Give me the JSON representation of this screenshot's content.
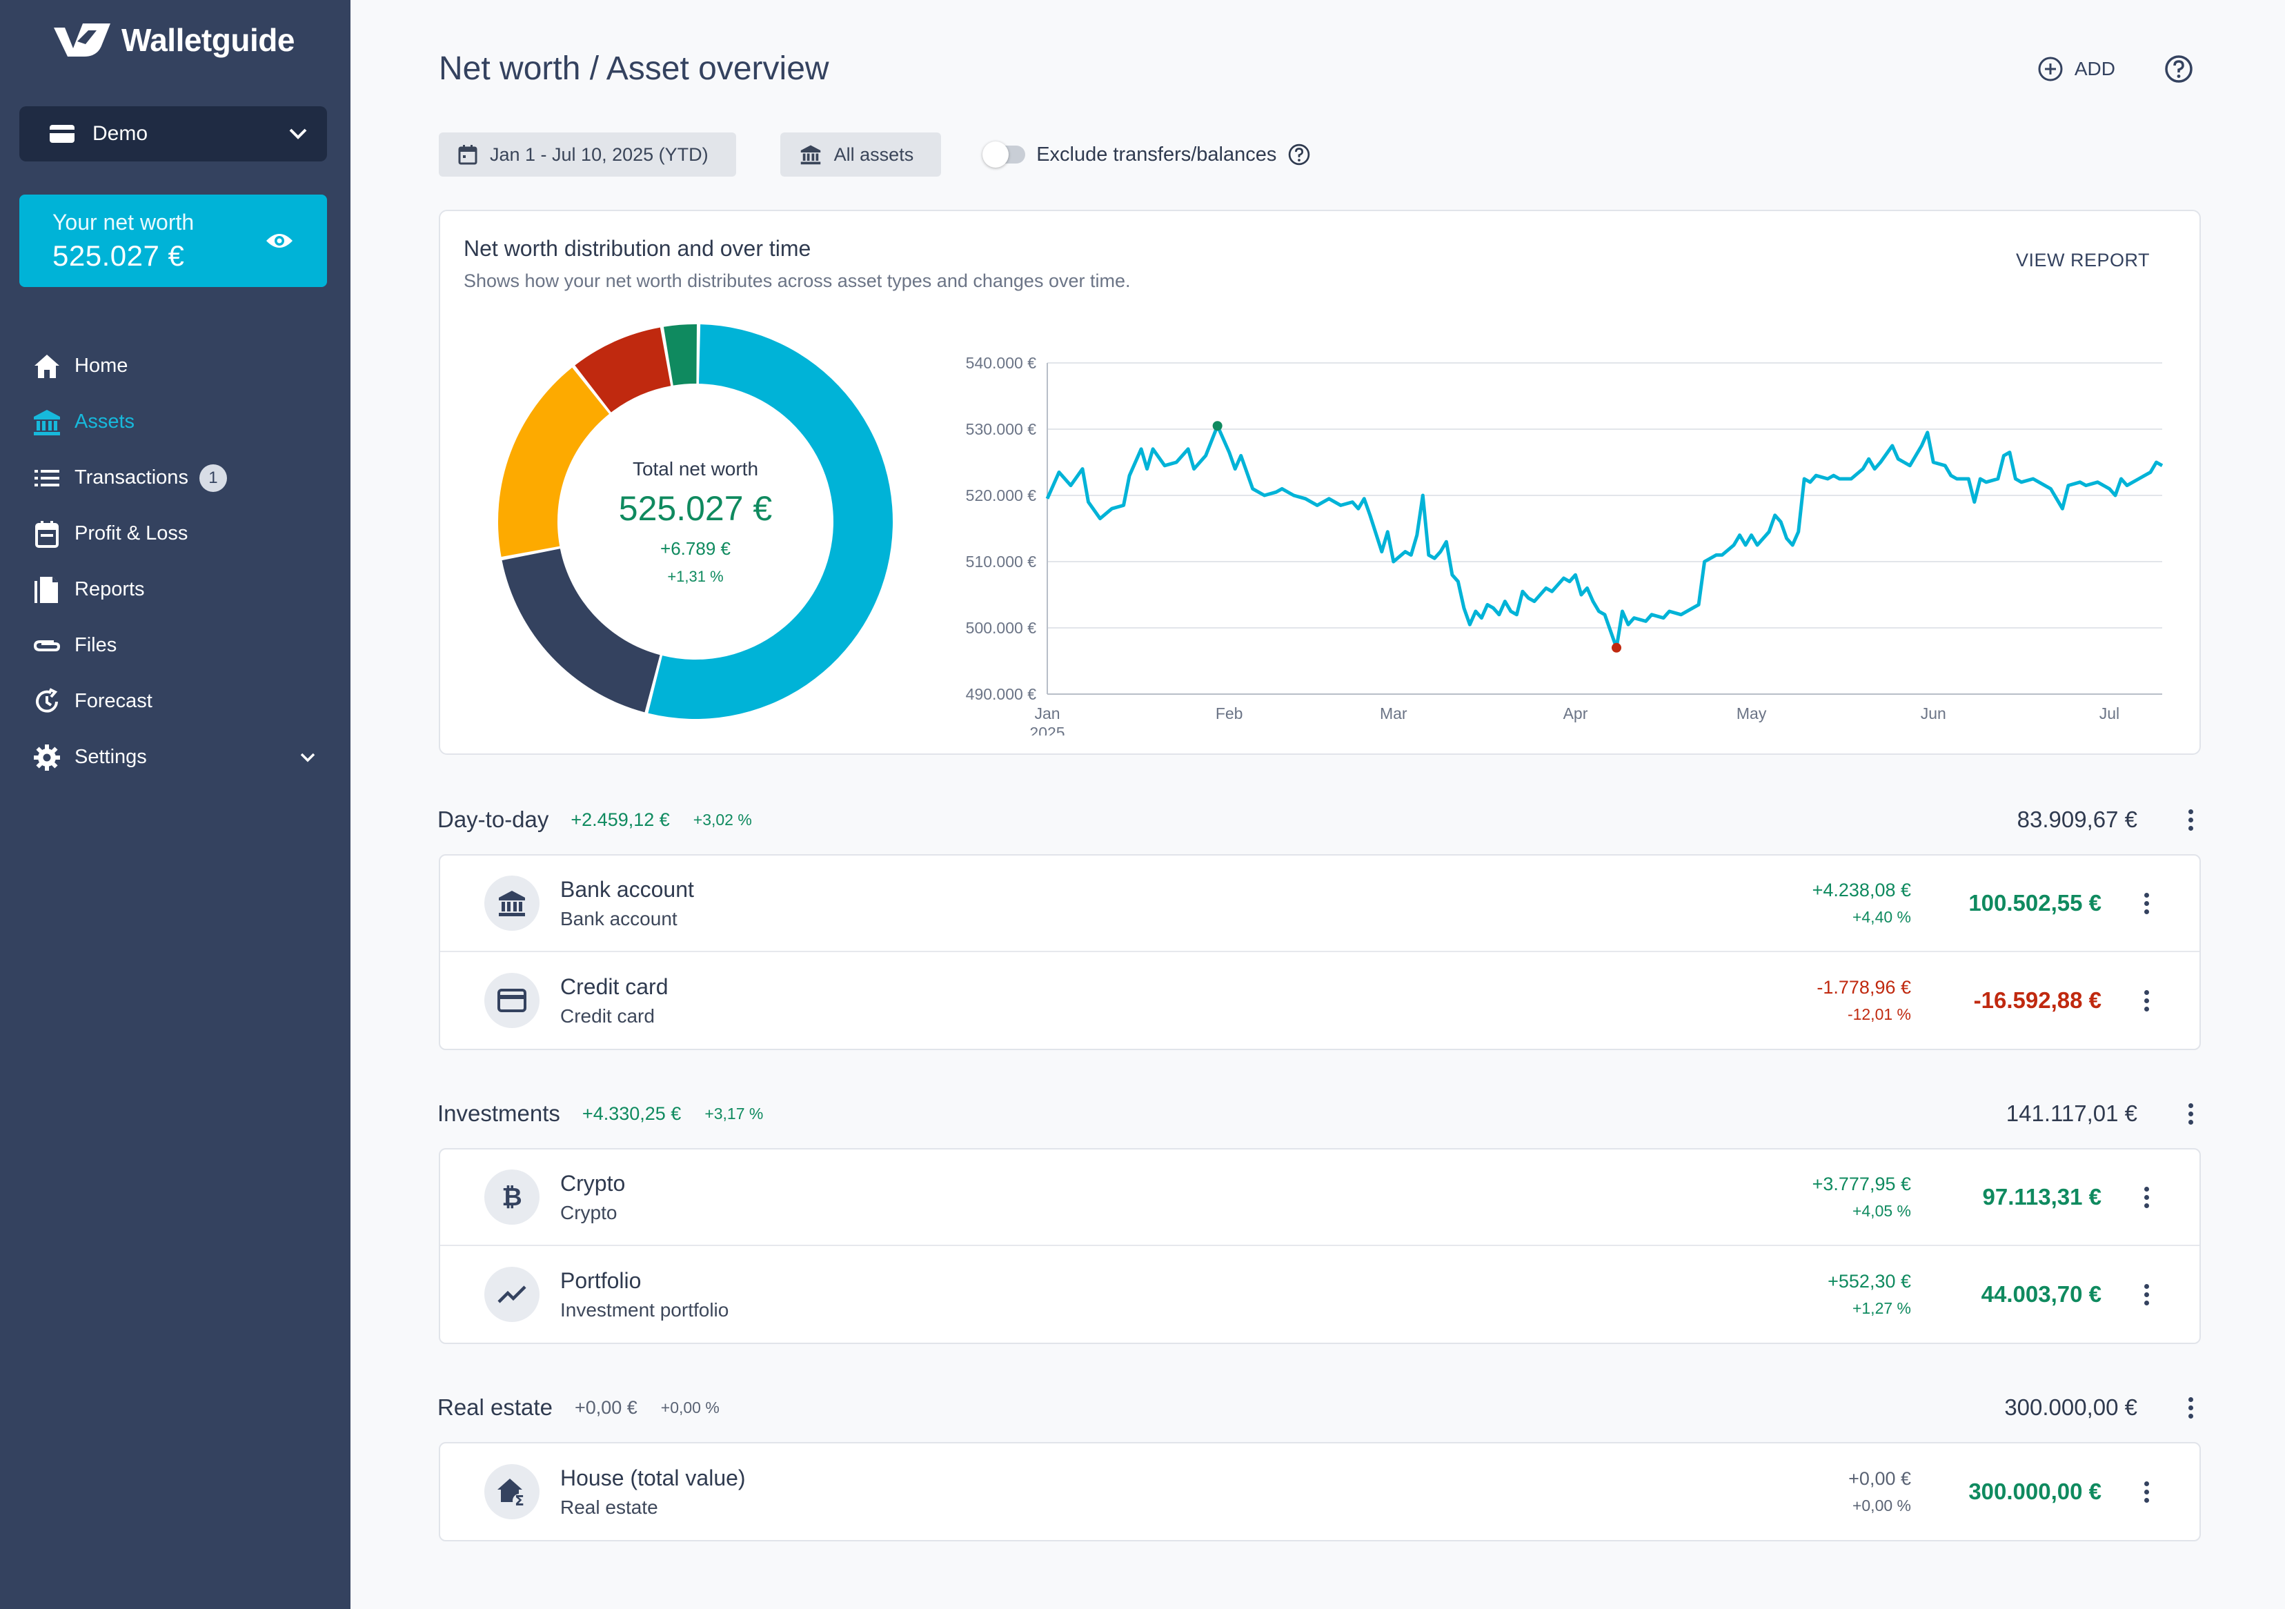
{
  "app": {
    "name": "Walletguide"
  },
  "sidebar": {
    "account": "Demo",
    "networth": {
      "label": "Your net worth",
      "value": "525.027 €"
    },
    "items": [
      {
        "label": "Home",
        "icon": "home-icon",
        "active": false
      },
      {
        "label": "Assets",
        "icon": "bank-icon",
        "active": true
      },
      {
        "label": "Transactions",
        "icon": "list-icon",
        "active": false,
        "badge": "1"
      },
      {
        "label": "Profit & Loss",
        "icon": "calendar-icon",
        "active": false
      },
      {
        "label": "Reports",
        "icon": "document-icon",
        "active": false
      },
      {
        "label": "Files",
        "icon": "paperclip-icon",
        "active": false
      },
      {
        "label": "Forecast",
        "icon": "forecast-icon",
        "active": false
      },
      {
        "label": "Settings",
        "icon": "gear-icon",
        "active": false
      }
    ]
  },
  "header": {
    "title": "Net worth / Asset overview",
    "add_label": "ADD"
  },
  "filters": {
    "date_range": "Jan 1 - Jul 10, 2025 (YTD)",
    "assets": "All assets",
    "exclude_label": "Exclude transfers/balances",
    "exclude_on": false
  },
  "chart_card": {
    "title": "Net worth distribution and over time",
    "subtitle": "Shows how your net worth distributes across asset types and changes over time.",
    "view_report": "VIEW REPORT",
    "center": {
      "label": "Total net worth",
      "value": "525.027 €",
      "change": "+6.789 €",
      "pct": "+1,31 %"
    }
  },
  "chart_data": [
    {
      "type": "pie",
      "variant": "donut",
      "slices": [
        {
          "value": 300000.0,
          "color": "#00b3d7"
        },
        {
          "value": 100502.55,
          "color": "#34425f"
        },
        {
          "value": 97113.31,
          "color": "#fdaa00"
        },
        {
          "value": 44003.7,
          "color": "#c0290f"
        },
        {
          "value": 16592.88,
          "color": "#0f8a5f"
        }
      ]
    },
    {
      "type": "line",
      "ylim": [
        490000,
        540000
      ],
      "yticks": [
        "490.000 €",
        "500.000 €",
        "510.000 €",
        "520.000 €",
        "530.000 €",
        "540.000 €"
      ],
      "ytick_values": [
        490000,
        500000,
        510000,
        520000,
        530000,
        540000
      ],
      "xticks": [
        "Jan",
        "Feb",
        "Mar",
        "Apr",
        "May",
        "Jun",
        "Jul"
      ],
      "xtick_days": [
        0,
        31,
        59,
        90,
        120,
        151,
        181
      ],
      "x_year_label": "2025",
      "x_max_day": 190,
      "color": "#00b3d7",
      "max_point": {
        "day": 29,
        "value": 530500,
        "color": "#0f8a5f"
      },
      "min_point": {
        "day": 97,
        "value": 497000,
        "color": "#c0290f"
      },
      "series": [
        {
          "day": 0,
          "value": 519500
        },
        {
          "day": 2,
          "value": 523500
        },
        {
          "day": 4,
          "value": 521500
        },
        {
          "day": 6,
          "value": 524000
        },
        {
          "day": 7,
          "value": 519000
        },
        {
          "day": 9,
          "value": 516500
        },
        {
          "day": 11,
          "value": 518000
        },
        {
          "day": 13,
          "value": 518500
        },
        {
          "day": 14,
          "value": 523000
        },
        {
          "day": 16,
          "value": 527000
        },
        {
          "day": 17,
          "value": 524000
        },
        {
          "day": 18,
          "value": 527000
        },
        {
          "day": 20,
          "value": 524500
        },
        {
          "day": 22,
          "value": 525000
        },
        {
          "day": 24,
          "value": 527000
        },
        {
          "day": 25,
          "value": 524000
        },
        {
          "day": 27,
          "value": 526000
        },
        {
          "day": 29,
          "value": 530500
        },
        {
          "day": 31,
          "value": 526500
        },
        {
          "day": 32,
          "value": 524000
        },
        {
          "day": 33,
          "value": 526000
        },
        {
          "day": 35,
          "value": 521000
        },
        {
          "day": 37,
          "value": 520000
        },
        {
          "day": 39,
          "value": 520500
        },
        {
          "day": 40,
          "value": 521000
        },
        {
          "day": 42,
          "value": 520000
        },
        {
          "day": 44,
          "value": 519500
        },
        {
          "day": 46,
          "value": 518500
        },
        {
          "day": 48,
          "value": 519500
        },
        {
          "day": 50,
          "value": 518500
        },
        {
          "day": 52,
          "value": 519000
        },
        {
          "day": 53,
          "value": 518000
        },
        {
          "day": 54,
          "value": 519500
        },
        {
          "day": 55,
          "value": 517000
        },
        {
          "day": 57,
          "value": 511500
        },
        {
          "day": 58,
          "value": 514500
        },
        {
          "day": 59,
          "value": 510000
        },
        {
          "day": 61,
          "value": 511500
        },
        {
          "day": 62,
          "value": 511000
        },
        {
          "day": 63,
          "value": 514000
        },
        {
          "day": 64,
          "value": 520000
        },
        {
          "day": 65,
          "value": 511000
        },
        {
          "day": 66,
          "value": 510500
        },
        {
          "day": 67,
          "value": 511500
        },
        {
          "day": 68,
          "value": 513000
        },
        {
          "day": 69,
          "value": 508000
        },
        {
          "day": 70,
          "value": 507000
        },
        {
          "day": 71,
          "value": 503000
        },
        {
          "day": 72,
          "value": 500500
        },
        {
          "day": 73,
          "value": 502500
        },
        {
          "day": 74,
          "value": 501500
        },
        {
          "day": 75,
          "value": 503500
        },
        {
          "day": 76,
          "value": 503000
        },
        {
          "day": 77,
          "value": 502000
        },
        {
          "day": 78,
          "value": 504000
        },
        {
          "day": 79,
          "value": 502500
        },
        {
          "day": 80,
          "value": 502000
        },
        {
          "day": 81,
          "value": 505500
        },
        {
          "day": 82,
          "value": 504500
        },
        {
          "day": 83,
          "value": 504000
        },
        {
          "day": 85,
          "value": 506000
        },
        {
          "day": 86,
          "value": 505500
        },
        {
          "day": 88,
          "value": 507500
        },
        {
          "day": 89,
          "value": 507000
        },
        {
          "day": 90,
          "value": 508000
        },
        {
          "day": 91,
          "value": 505000
        },
        {
          "day": 92,
          "value": 506000
        },
        {
          "day": 93,
          "value": 504000
        },
        {
          "day": 94,
          "value": 502500
        },
        {
          "day": 95,
          "value": 502000
        },
        {
          "day": 96,
          "value": 499500
        },
        {
          "day": 97,
          "value": 497000
        },
        {
          "day": 98,
          "value": 502500
        },
        {
          "day": 99,
          "value": 500500
        },
        {
          "day": 100,
          "value": 501500
        },
        {
          "day": 102,
          "value": 501000
        },
        {
          "day": 103,
          "value": 502000
        },
        {
          "day": 105,
          "value": 501500
        },
        {
          "day": 106,
          "value": 502500
        },
        {
          "day": 108,
          "value": 502000
        },
        {
          "day": 110,
          "value": 503000
        },
        {
          "day": 111,
          "value": 503500
        },
        {
          "day": 112,
          "value": 510000
        },
        {
          "day": 114,
          "value": 511000
        },
        {
          "day": 115,
          "value": 511000
        },
        {
          "day": 117,
          "value": 512500
        },
        {
          "day": 118,
          "value": 514000
        },
        {
          "day": 119,
          "value": 512500
        },
        {
          "day": 120,
          "value": 514000
        },
        {
          "day": 121,
          "value": 512500
        },
        {
          "day": 123,
          "value": 514500
        },
        {
          "day": 124,
          "value": 517000
        },
        {
          "day": 125,
          "value": 516000
        },
        {
          "day": 126,
          "value": 513500
        },
        {
          "day": 127,
          "value": 512500
        },
        {
          "day": 128,
          "value": 514500
        },
        {
          "day": 129,
          "value": 522500
        },
        {
          "day": 130,
          "value": 522000
        },
        {
          "day": 131,
          "value": 523000
        },
        {
          "day": 133,
          "value": 522500
        },
        {
          "day": 134,
          "value": 523000
        },
        {
          "day": 135,
          "value": 522500
        },
        {
          "day": 137,
          "value": 522500
        },
        {
          "day": 139,
          "value": 524000
        },
        {
          "day": 140,
          "value": 525500
        },
        {
          "day": 141,
          "value": 524000
        },
        {
          "day": 142,
          "value": 525000
        },
        {
          "day": 144,
          "value": 527500
        },
        {
          "day": 145,
          "value": 525500
        },
        {
          "day": 146,
          "value": 525000
        },
        {
          "day": 147,
          "value": 524500
        },
        {
          "day": 148,
          "value": 526000
        },
        {
          "day": 149,
          "value": 527500
        },
        {
          "day": 150,
          "value": 529500
        },
        {
          "day": 151,
          "value": 525000
        },
        {
          "day": 153,
          "value": 524500
        },
        {
          "day": 154,
          "value": 523000
        },
        {
          "day": 155,
          "value": 522500
        },
        {
          "day": 157,
          "value": 522500
        },
        {
          "day": 158,
          "value": 519000
        },
        {
          "day": 159,
          "value": 522500
        },
        {
          "day": 160,
          "value": 522000
        },
        {
          "day": 162,
          "value": 522500
        },
        {
          "day": 163,
          "value": 526000
        },
        {
          "day": 164,
          "value": 526500
        },
        {
          "day": 165,
          "value": 522500
        },
        {
          "day": 166,
          "value": 522000
        },
        {
          "day": 168,
          "value": 522500
        },
        {
          "day": 169,
          "value": 522000
        },
        {
          "day": 171,
          "value": 521000
        },
        {
          "day": 172,
          "value": 519500
        },
        {
          "day": 173,
          "value": 518000
        },
        {
          "day": 174,
          "value": 521500
        },
        {
          "day": 176,
          "value": 522000
        },
        {
          "day": 177,
          "value": 521500
        },
        {
          "day": 179,
          "value": 522000
        },
        {
          "day": 181,
          "value": 521000
        },
        {
          "day": 182,
          "value": 520000
        },
        {
          "day": 183,
          "value": 522500
        },
        {
          "day": 184,
          "value": 521500
        },
        {
          "day": 186,
          "value": 522500
        },
        {
          "day": 187,
          "value": 523000
        },
        {
          "day": 188,
          "value": 523500
        },
        {
          "day": 189,
          "value": 525000
        },
        {
          "day": 190,
          "value": 524500
        }
      ]
    }
  ],
  "groups": [
    {
      "name": "Day-to-day",
      "change": "+2.459,12 €",
      "pct": "+3,02 %",
      "total": "83.909,67 €",
      "tone": "pos",
      "rows": [
        {
          "title": "Bank account",
          "subtitle": "Bank account",
          "icon": "bank-icon",
          "change": "+4.238,08 €",
          "pct": "+4,40 %",
          "value": "100.502,55 €",
          "tone": "pos"
        },
        {
          "title": "Credit card",
          "subtitle": "Credit card",
          "icon": "credit-card-icon",
          "change": "-1.778,96 €",
          "pct": "-12,01 %",
          "value": "-16.592,88 €",
          "tone": "neg"
        }
      ]
    },
    {
      "name": "Investments",
      "change": "+4.330,25 €",
      "pct": "+3,17 %",
      "total": "141.117,01 €",
      "tone": "pos",
      "rows": [
        {
          "title": "Crypto",
          "subtitle": "Crypto",
          "icon": "bitcoin-icon",
          "change": "+3.777,95 €",
          "pct": "+4,05 %",
          "value": "97.113,31 €",
          "tone": "pos"
        },
        {
          "title": "Portfolio",
          "subtitle": "Investment portfolio",
          "icon": "trend-icon",
          "change": "+552,30 €",
          "pct": "+1,27 %",
          "value": "44.003,70 €",
          "tone": "pos"
        }
      ]
    },
    {
      "name": "Real estate",
      "change": "+0,00 €",
      "pct": "+0,00 %",
      "total": "300.000,00 €",
      "tone": "neutral",
      "rows": [
        {
          "title": "House (total value)",
          "subtitle": "Real estate",
          "icon": "house-sum-icon",
          "change": "+0,00 €",
          "pct": "+0,00 %",
          "value": "300.000,00 €",
          "tone": "neutral"
        }
      ]
    }
  ]
}
